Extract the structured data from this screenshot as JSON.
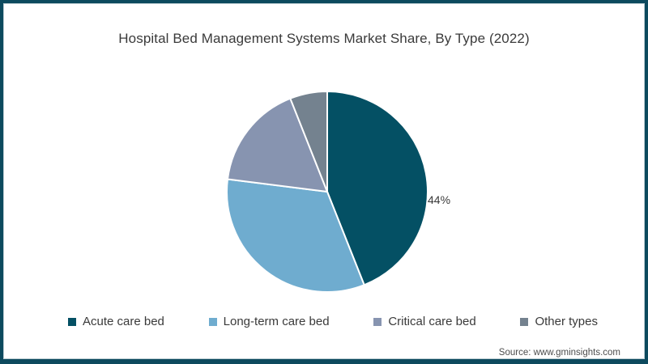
{
  "frame": {
    "border_color": "#0d4a5e",
    "background": "#ffffff"
  },
  "title": "Hospital Bed Management Systems Market Share, By Type (2022)",
  "source": "Source: www.gminsights.com",
  "chart_data": {
    "type": "pie",
    "title": "Hospital Bed Management Systems Market Share, By Type (2022)",
    "start_angle_deg": 0,
    "direction": "clockwise",
    "legend_position": "bottom",
    "slices": [
      {
        "label": "Acute care bed",
        "value": 44,
        "color": "#045064",
        "data_label": "44%"
      },
      {
        "label": "Long-term care bed",
        "value": 33,
        "color": "#6FACCF",
        "data_label": ""
      },
      {
        "label": "Critical care bed",
        "value": 17,
        "color": "#8794B0",
        "data_label": ""
      },
      {
        "label": "Other types",
        "value": 6,
        "color": "#74828F",
        "data_label": ""
      }
    ],
    "slice_separator_color": "#ffffff",
    "geometry_note_values_unlabeled": "only 44% shown on chart; other values estimated from arcs"
  }
}
